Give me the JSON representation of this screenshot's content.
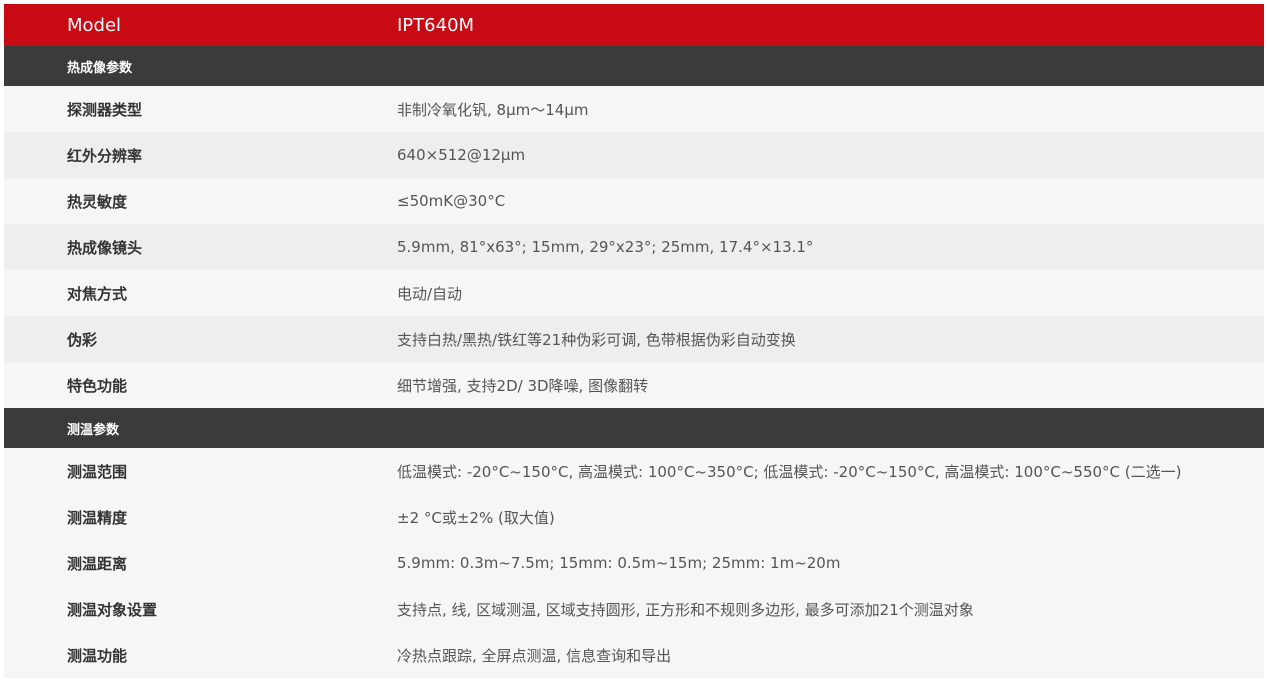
{
  "header": {
    "label": "Model",
    "value": "IPT640M"
  },
  "sections": [
    {
      "title": "热成像参数",
      "rows": [
        {
          "label": "探测器类型",
          "value": "非制冷氧化钒, 8μm～14μm"
        },
        {
          "label": "红外分辨率",
          "value": "640×512@12μm"
        },
        {
          "label": "热灵敏度",
          "value": "≤50mK@30°C"
        },
        {
          "label": "热成像镜头",
          "value": "5.9mm, 81°x63°; 15mm, 29°x23°; 25mm, 17.4°×13.1°"
        },
        {
          "label": "对焦方式",
          "value": "电动/自动"
        },
        {
          "label": "伪彩",
          "value": "支持白热/黑热/铁红等21种伪彩可调, 色带根据伪彩自动变换"
        },
        {
          "label": "特色功能",
          "value": "细节增强, 支持2D/ 3D降噪, 图像翻转"
        }
      ]
    },
    {
      "title": "测温参数",
      "rows": [
        {
          "label": "测温范围",
          "value": "低温模式: -20°C~150°C, 高温模式: 100°C~350°C; 低温模式: -20°C~150°C, 高温模式: 100°C~550°C (二选一)"
        },
        {
          "label": "测温精度",
          "value": "±2 °C或±2% (取大值)"
        },
        {
          "label": "测温距离",
          "value": "5.9mm: 0.3m~7.5m; 15mm: 0.5m~15m; 25mm: 1m~20m"
        },
        {
          "label": "测温对象设置",
          "value": "支持点, 线, 区域测温, 区域支持圆形, 正方形和不规则多边形, 最多可添加21个测温对象"
        },
        {
          "label": "测温功能",
          "value": "冷热点跟踪, 全屏点测温, 信息查询和导出"
        }
      ]
    }
  ],
  "colors": {
    "header": "#c80a14",
    "section": "#3b3b3b"
  }
}
